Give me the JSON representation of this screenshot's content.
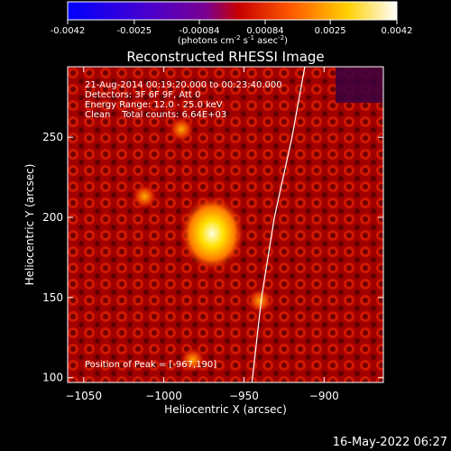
{
  "colorbar": {
    "ticks": [
      "-0.0042",
      "-0.0025",
      "-0.00084",
      "0.00084",
      "0.0025",
      "0.0042"
    ],
    "unit_prefix": "(photons cm",
    "unit_exp1": "-2",
    "unit_mid": " s",
    "unit_exp2": "-1",
    "unit_mid2": " asec",
    "unit_exp3": "-2",
    "unit_suffix": ")"
  },
  "chart_data": {
    "type": "heatmap",
    "title": "Reconstructed RHESSI Image",
    "xlabel": "Heliocentric X (arcsec)",
    "ylabel": "Heliocentric Y (arcsec)",
    "xlim": [
      -1060,
      -863
    ],
    "ylim": [
      97,
      294
    ],
    "xticks": [
      -1050,
      -1000,
      -950,
      -900
    ],
    "yticks": [
      100,
      150,
      200,
      250
    ],
    "peak_position": [
      -967,
      190
    ],
    "limb_curve": [
      [
        -945,
        97
      ],
      [
        -939,
        150
      ],
      [
        -931,
        200
      ],
      [
        -920,
        250
      ],
      [
        -912,
        294
      ]
    ],
    "secondary_sources": [
      {
        "x": -989,
        "y": 255
      },
      {
        "x": -982,
        "y": 111
      },
      {
        "x": -1012,
        "y": 213
      },
      {
        "x": -940,
        "y": 148
      }
    ],
    "colorbar_range": [
      -0.0042,
      0.0042
    ],
    "annotations": [
      "21-Aug-2014 00:19:20.000 to 00:23:40.000",
      "Detectors: 3F 6F 9F, Att 0",
      "Energy Range: 12.0 - 25.0 keV",
      "Clean    Total counts: 6.64E+03",
      "Position of Peak = [-967,190]"
    ],
    "timestamp": "16-May-2022 06:27"
  }
}
